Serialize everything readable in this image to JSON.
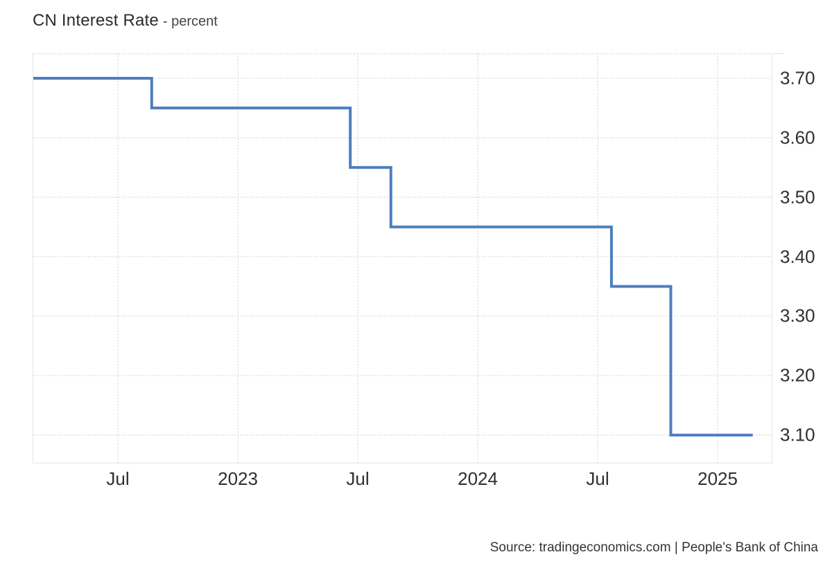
{
  "header": {
    "title": "CN Interest Rate",
    "subtitle": "- percent"
  },
  "footer": {
    "source_label": "Source: tradingeconomics.com | People's Bank of China"
  },
  "chart_data": {
    "type": "line",
    "step": "after",
    "title": "CN Interest Rate",
    "ylabel": "percent",
    "xlabel": "",
    "legend": "none",
    "grid": true,
    "colors": {
      "line": "#4d7ebe",
      "grid": "#d6d6d6",
      "plot_border": "#e5e5e5",
      "tick_label": "#2f2f2f"
    },
    "line_width": 4,
    "x_axis": {
      "month_index_epoch": "2022-01",
      "range_month_index": [
        1.768,
        38.703
      ],
      "ticks": [
        {
          "month_index": 6,
          "label": "Jul"
        },
        {
          "month_index": 12,
          "label": "2023"
        },
        {
          "month_index": 18,
          "label": "Jul"
        },
        {
          "month_index": 24,
          "label": "2024"
        },
        {
          "month_index": 30,
          "label": "Jul"
        },
        {
          "month_index": 36,
          "label": "2025"
        }
      ]
    },
    "y_axis": {
      "range": [
        3.0535,
        3.7419
      ],
      "ticks": [
        {
          "value": 3.7,
          "label": "3.70"
        },
        {
          "value": 3.6,
          "label": "3.60"
        },
        {
          "value": 3.5,
          "label": "3.50"
        },
        {
          "value": 3.4,
          "label": "3.40"
        },
        {
          "value": 3.3,
          "label": "3.30"
        },
        {
          "value": 3.2,
          "label": "3.20"
        },
        {
          "value": 3.1,
          "label": "3.10"
        }
      ]
    },
    "series": [
      {
        "name": "CN Interest Rate",
        "unit": "percent",
        "points": [
          {
            "date": "2022-02-20",
            "value": 3.7
          },
          {
            "date": "2022-08-22",
            "value": 3.65
          },
          {
            "date": "2023-06-20",
            "value": 3.55
          },
          {
            "date": "2023-08-21",
            "value": 3.45
          },
          {
            "date": "2024-07-22",
            "value": 3.35
          },
          {
            "date": "2024-10-21",
            "value": 3.1
          },
          {
            "date": "2025-02-24",
            "value": 3.1
          }
        ]
      }
    ]
  }
}
